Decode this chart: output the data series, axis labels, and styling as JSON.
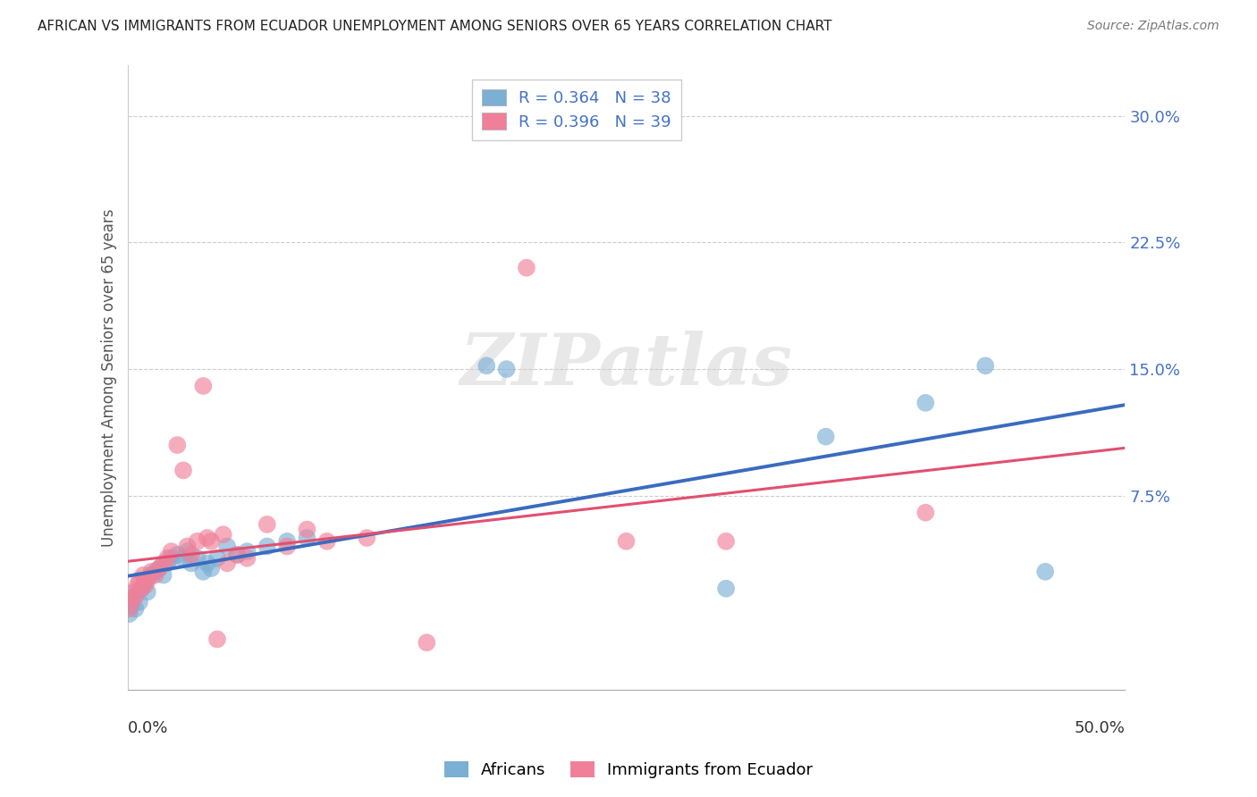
{
  "title": "AFRICAN VS IMMIGRANTS FROM ECUADOR UNEMPLOYMENT AMONG SENIORS OVER 65 YEARS CORRELATION CHART",
  "source": "Source: ZipAtlas.com",
  "ylabel": "Unemployment Among Seniors over 65 years",
  "ytick_labels": [
    "7.5%",
    "15.0%",
    "22.5%",
    "30.0%"
  ],
  "ytick_values": [
    0.075,
    0.15,
    0.225,
    0.3
  ],
  "xlim": [
    0.0,
    0.5
  ],
  "ylim": [
    -0.04,
    0.33
  ],
  "legend_r_values": [
    "0.364",
    "0.396"
  ],
  "legend_n_values": [
    "38",
    "39"
  ],
  "africans_color": "#7bafd4",
  "ecuador_color": "#f08099",
  "africans_line_color": "#3a6bbf",
  "ecuador_line_color": "#e05070",
  "africans_scatter": [
    [
      0.001,
      0.005
    ],
    [
      0.002,
      0.01
    ],
    [
      0.003,
      0.015
    ],
    [
      0.004,
      0.008
    ],
    [
      0.005,
      0.018
    ],
    [
      0.006,
      0.012
    ],
    [
      0.007,
      0.02
    ],
    [
      0.008,
      0.022
    ],
    [
      0.009,
      0.025
    ],
    [
      0.01,
      0.018
    ],
    [
      0.012,
      0.028
    ],
    [
      0.014,
      0.03
    ],
    [
      0.016,
      0.032
    ],
    [
      0.018,
      0.028
    ],
    [
      0.02,
      0.035
    ],
    [
      0.022,
      0.038
    ],
    [
      0.025,
      0.04
    ],
    [
      0.028,
      0.038
    ],
    [
      0.03,
      0.042
    ],
    [
      0.032,
      0.035
    ],
    [
      0.035,
      0.038
    ],
    [
      0.038,
      0.03
    ],
    [
      0.04,
      0.035
    ],
    [
      0.042,
      0.032
    ],
    [
      0.045,
      0.038
    ],
    [
      0.05,
      0.045
    ],
    [
      0.055,
      0.04
    ],
    [
      0.06,
      0.042
    ],
    [
      0.07,
      0.045
    ],
    [
      0.08,
      0.048
    ],
    [
      0.09,
      0.05
    ],
    [
      0.18,
      0.152
    ],
    [
      0.19,
      0.15
    ],
    [
      0.3,
      0.02
    ],
    [
      0.35,
      0.11
    ],
    [
      0.4,
      0.13
    ],
    [
      0.43,
      0.152
    ],
    [
      0.46,
      0.03
    ]
  ],
  "ecuador_scatter": [
    [
      0.001,
      0.008
    ],
    [
      0.002,
      0.012
    ],
    [
      0.003,
      0.018
    ],
    [
      0.004,
      0.015
    ],
    [
      0.005,
      0.022
    ],
    [
      0.006,
      0.025
    ],
    [
      0.007,
      0.02
    ],
    [
      0.008,
      0.028
    ],
    [
      0.009,
      0.022
    ],
    [
      0.01,
      0.025
    ],
    [
      0.012,
      0.03
    ],
    [
      0.014,
      0.028
    ],
    [
      0.016,
      0.032
    ],
    [
      0.018,
      0.035
    ],
    [
      0.02,
      0.038
    ],
    [
      0.022,
      0.042
    ],
    [
      0.025,
      0.105
    ],
    [
      0.028,
      0.09
    ],
    [
      0.03,
      0.045
    ],
    [
      0.032,
      0.04
    ],
    [
      0.035,
      0.048
    ],
    [
      0.038,
      0.14
    ],
    [
      0.04,
      0.05
    ],
    [
      0.042,
      0.048
    ],
    [
      0.045,
      -0.01
    ],
    [
      0.048,
      0.052
    ],
    [
      0.05,
      0.035
    ],
    [
      0.055,
      0.04
    ],
    [
      0.06,
      0.038
    ],
    [
      0.07,
      0.058
    ],
    [
      0.08,
      0.045
    ],
    [
      0.09,
      0.055
    ],
    [
      0.1,
      0.048
    ],
    [
      0.12,
      0.05
    ],
    [
      0.15,
      -0.012
    ],
    [
      0.2,
      0.21
    ],
    [
      0.25,
      0.048
    ],
    [
      0.3,
      0.048
    ],
    [
      0.4,
      0.065
    ]
  ],
  "watermark_text": "ZIPatlas",
  "background_color": "#ffffff"
}
